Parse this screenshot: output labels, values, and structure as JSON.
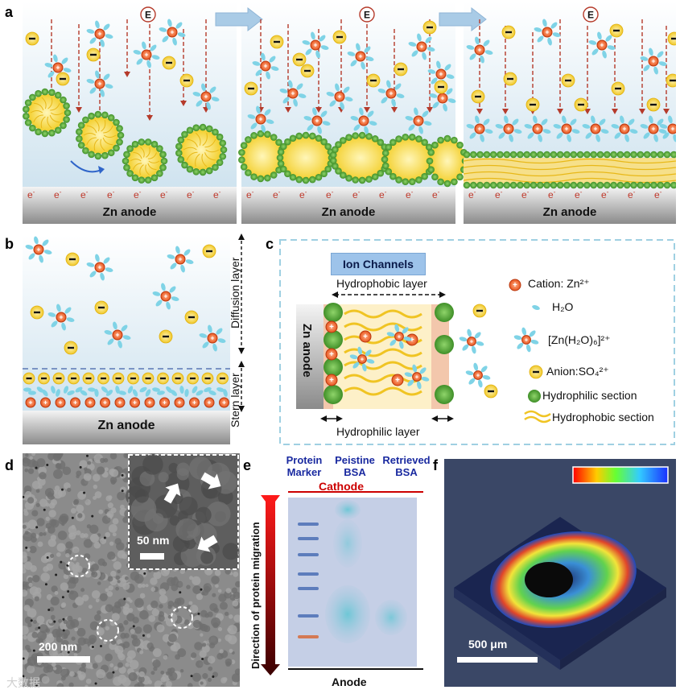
{
  "panels": {
    "a": {
      "label": "a",
      "anode_label": "Zn anode",
      "field_symbol": "E",
      "electron": "e",
      "electron_charge": "-"
    },
    "b": {
      "label": "b",
      "anode_label": "Zn anode",
      "diffusion_layer": "Diffusion layer",
      "stern_layer": "Stern layer"
    },
    "c": {
      "label": "c",
      "ion_channels": "Ion Channels",
      "hydrophobic_layer": "Hydrophobic layer",
      "hydrophilic_layer": "Hydrophilic layer",
      "anode_label": "Zn anode",
      "legend": {
        "cation": "Cation: Zn²⁺",
        "water": "H₂O",
        "complex": "[Zn(H₂O)₆]²⁺",
        "anion": "Anion:SO₄²⁺",
        "hydrophilic": "Hydrophilic section",
        "hydrophobic": "Hydrophobic section"
      }
    },
    "d": {
      "label": "d",
      "inset_scale": "50 nm",
      "main_scale": "200 nm"
    },
    "e": {
      "label": "e",
      "lanes": [
        "Protein Marker",
        "Peistine BSA",
        "Retrieved BSA"
      ],
      "lane_lines": [
        [
          "Protein",
          "Marker"
        ],
        [
          "Peistine",
          "BSA"
        ],
        [
          "Retrieved",
          "BSA"
        ]
      ],
      "cathode": "Cathode",
      "anode": "Anode",
      "axis_label": "Direction of protein migration"
    },
    "f": {
      "label": "f",
      "scale": "500 μm"
    }
  },
  "colors": {
    "cation": "#e8541c",
    "water": "#7fd3e6",
    "anion": "#f6d64a",
    "hydrophilic": "#5fae3e",
    "hydrophobic": "#f4d13a",
    "field_arrow": "#b53a2a",
    "electron": "#c0392b",
    "cathode_line": "#cc0000",
    "lane_text": "#1a2aa0"
  },
  "watermark": "大数据"
}
